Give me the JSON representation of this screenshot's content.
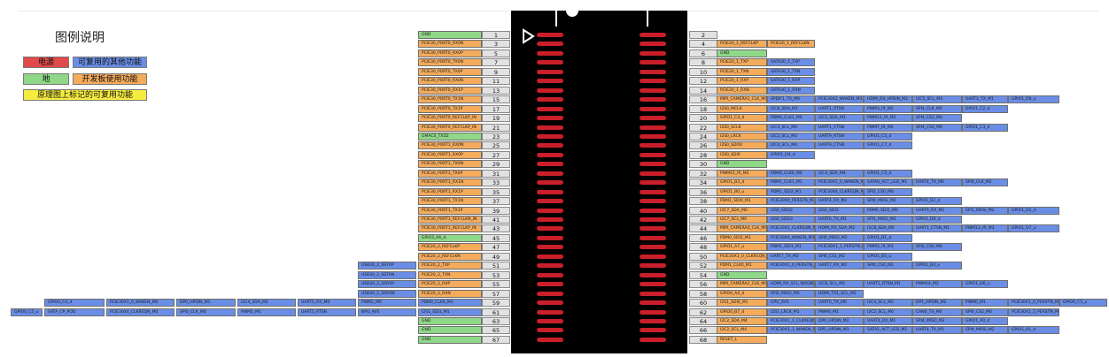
{
  "legend": {
    "title": "图例说明",
    "items": [
      {
        "label": "电源",
        "color": "#e04a4a"
      },
      {
        "label": "可复用的其他功能",
        "color": "#6a8ee6"
      },
      {
        "label": "地",
        "color": "#8fd888"
      },
      {
        "label": "开发板使用功能",
        "color": "#f4ab5c"
      },
      {
        "label": "原理图上标记的可复用功能",
        "color": "#f6ec40"
      }
    ]
  },
  "colors": {
    "power": "#e04a4a",
    "alt": "#6a8ee6",
    "ground": "#8fd888",
    "board": "#f4ab5c",
    "marked": "#f6ec40",
    "pin_number": "#e2e2e2",
    "connector": "#000000",
    "pad": "#c91f2a"
  },
  "left_pins": [
    {
      "num": "1",
      "cells": [
        {
          "t": "GND",
          "c": "g"
        }
      ]
    },
    {
      "num": "3",
      "cells": [
        {
          "t": "PCIE30_PORT0_RX0N",
          "c": "o"
        }
      ]
    },
    {
      "num": "5",
      "cells": [
        {
          "t": "PCIE30_PORT0_RX0P",
          "c": "o"
        }
      ]
    },
    {
      "num": "7",
      "cells": [
        {
          "t": "PCIE30_PORT0_TX0N",
          "c": "o"
        }
      ]
    },
    {
      "num": "9",
      "cells": [
        {
          "t": "PCIE30_PORT0_TX0P",
          "c": "o"
        }
      ]
    },
    {
      "num": "11",
      "cells": [
        {
          "t": "PCIE30_PORT0_RX0N",
          "c": "o"
        }
      ]
    },
    {
      "num": "13",
      "cells": [
        {
          "t": "PCIE30_PORT0_RX1P",
          "c": "o"
        }
      ]
    },
    {
      "num": "15",
      "cells": [
        {
          "t": "PCIE30_PORT0_TX1N",
          "c": "o"
        }
      ]
    },
    {
      "num": "17",
      "cells": [
        {
          "t": "PCIE30_PORT0_TX1P",
          "c": "o"
        }
      ]
    },
    {
      "num": "19",
      "cells": [
        {
          "t": "PCIE30_PORT0_REFCLKP_IN",
          "c": "o"
        }
      ]
    },
    {
      "num": "21",
      "cells": [
        {
          "t": "PCIE30_PORT0_REFCLKP_IN",
          "c": "o"
        }
      ]
    },
    {
      "num": "23",
      "cells": [
        {
          "t": "GMAC0_TXD2",
          "c": "g"
        }
      ]
    },
    {
      "num": "25",
      "cells": [
        {
          "t": "PCIE30_PORT1_RX0N",
          "c": "o"
        }
      ]
    },
    {
      "num": "27",
      "cells": [
        {
          "t": "PCIE30_PORT1_RX0P",
          "c": "o"
        }
      ]
    },
    {
      "num": "29",
      "cells": [
        {
          "t": "PCIE30_PORT1_TX0N",
          "c": "o"
        }
      ]
    },
    {
      "num": "31",
      "cells": [
        {
          "t": "PCIE30_PORT1_TX0P",
          "c": "o"
        }
      ]
    },
    {
      "num": "33",
      "cells": [
        {
          "t": "PCIE30_PORT1_RX1N",
          "c": "o"
        }
      ]
    },
    {
      "num": "35",
      "cells": [
        {
          "t": "PCIE30_PORT1_RX1P",
          "c": "o"
        }
      ]
    },
    {
      "num": "37",
      "cells": [
        {
          "t": "PCIE30_PORT1_TX1N",
          "c": "o"
        }
      ]
    },
    {
      "num": "39",
      "cells": [
        {
          "t": "PCIE30_PORT1_TX1P",
          "c": "o"
        }
      ]
    },
    {
      "num": "41",
      "cells": [
        {
          "t": "PCIE30_PORT1_REFCLKN_IN",
          "c": "o"
        }
      ]
    },
    {
      "num": "43",
      "cells": [
        {
          "t": "PCIE30_PORT1_REFCLKP_IN",
          "c": "o"
        }
      ]
    },
    {
      "num": "45",
      "cells": [
        {
          "t": "GPIO3_A6_d",
          "c": "g"
        }
      ]
    },
    {
      "num": "47",
      "cells": [
        {
          "t": "PCIE20_2_REFCLKP",
          "c": "o"
        }
      ]
    },
    {
      "num": "49",
      "cells": [
        {
          "t": "PCIE20_2_REFCLKN",
          "c": "o"
        }
      ]
    },
    {
      "num": "51",
      "cells": [
        {
          "t": "PCIE20_2_TXP",
          "c": "o"
        },
        {
          "t": "USB30_2_SSTXP",
          "c": "b"
        }
      ]
    },
    {
      "num": "53",
      "cells": [
        {
          "t": "PCIE20_2_TXN",
          "c": "o"
        },
        {
          "t": "USB30_2_SSTXN",
          "c": "b"
        }
      ]
    },
    {
      "num": "55",
      "cells": [
        {
          "t": "PCIE20_2_RXP",
          "c": "o"
        },
        {
          "t": "USB30_2_SSRXP",
          "c": "b"
        }
      ]
    },
    {
      "num": "57",
      "cells": [
        {
          "t": "PCIE20_2_RXN",
          "c": "o"
        },
        {
          "t": "USB30_2_SSRXN",
          "c": "b"
        }
      ]
    },
    {
      "num": "59",
      "cells": [
        {
          "t": "PDM0_CLK0_M1",
          "c": "b"
        },
        {
          "t": "PWM2_M0",
          "c": "b"
        },
        {
          "t": "UART5_RX_M0",
          "c": "b"
        },
        {
          "t": "I2C4_SDA_M2",
          "c": "b"
        },
        {
          "t": "DP0_HPDIN_M1",
          "c": "b"
        },
        {
          "t": "PCIE30X1_0_WAKEN_M0",
          "c": "b"
        },
        {
          "t": "GPIO0_C4_d",
          "c": "b"
        }
      ]
    },
    {
      "num": "61",
      "cells": [
        {
          "t": "I2S1_SDI1_M1",
          "c": "b"
        },
        {
          "t": "NPU_AVS",
          "c": "b"
        },
        {
          "t": "UART5_RTSN",
          "c": "b"
        },
        {
          "t": "PWM5_M1",
          "c": "b"
        },
        {
          "t": "SPI0_CLK_M0",
          "c": "b"
        },
        {
          "t": "PCIE30X4_CLKREQN_M0",
          "c": "b"
        },
        {
          "t": "SATA_CP_POD",
          "c": "b"
        },
        {
          "t": "GPIO0_C5_u",
          "c": "b"
        }
      ]
    },
    {
      "num": "63",
      "cells": [
        {
          "t": "GND",
          "c": "g"
        }
      ]
    },
    {
      "num": "65",
      "cells": [
        {
          "t": "GND",
          "c": "g"
        }
      ]
    },
    {
      "num": "67",
      "cells": [
        {
          "t": "GND",
          "c": "g"
        }
      ]
    }
  ],
  "right_pins": [
    {
      "num": "2",
      "cells": []
    },
    {
      "num": "4",
      "cells": [
        {
          "t": "PCIE20_1_REFCLKP",
          "c": "o"
        },
        {
          "t": "PCIE20_1_REFCLKN",
          "c": "o"
        }
      ]
    },
    {
      "num": "6",
      "cells": [
        {
          "t": "GND",
          "c": "g"
        }
      ]
    },
    {
      "num": "8",
      "cells": [
        {
          "t": "PCIE20_1_TXP",
          "c": "o"
        },
        {
          "t": "SATA30_1_TXP",
          "c": "b"
        }
      ]
    },
    {
      "num": "10",
      "cells": [
        {
          "t": "PCIE20_1_TXN",
          "c": "o"
        },
        {
          "t": "SATA30_1_TXN",
          "c": "b"
        }
      ]
    },
    {
      "num": "12",
      "cells": [
        {
          "t": "PCIE20_1_RXP",
          "c": "o"
        },
        {
          "t": "SATA30_1_RXP",
          "c": "b"
        }
      ]
    },
    {
      "num": "14",
      "cells": [
        {
          "t": "PCIE20_1_RXN",
          "c": "o"
        },
        {
          "t": "SATA30_1_RXN",
          "c": "b"
        }
      ]
    },
    {
      "num": "16",
      "cells": [
        {
          "t": "MIPI_CAMERA1_CLK_M0",
          "c": "o"
        },
        {
          "t": "SPDIF1_TX_M0",
          "c": "b"
        },
        {
          "t": "PCIE30X2_WAKEN_M3",
          "c": "b"
        },
        {
          "t": "HDMI_RX_HPDIN_M2",
          "c": "b"
        },
        {
          "t": "I2C5_SCL_M3",
          "c": "b"
        },
        {
          "t": "UART3_TX_M1",
          "c": "b"
        },
        {
          "t": "GPIO1_D6_u",
          "c": "b"
        }
      ]
    },
    {
      "num": "18",
      "cells": [
        {
          "t": "I2S0_MCLK",
          "c": "o"
        },
        {
          "t": "I2C8_SDA_M1",
          "c": "b"
        },
        {
          "t": "UART1_RTSN",
          "c": "b"
        },
        {
          "t": "PWM3_IR_M2",
          "c": "b"
        },
        {
          "t": "SPI4_CLK_M0",
          "c": "b"
        },
        {
          "t": "GPIO1_C2_d",
          "c": "b"
        }
      ]
    },
    {
      "num": "20",
      "cells": [
        {
          "t": "GPIO1_C4_d",
          "c": "o"
        },
        {
          "t": "PDM0_CLK1_M0",
          "c": "b"
        },
        {
          "t": "I2C2_SDA_M1",
          "c": "b"
        },
        {
          "t": "PWM11_IR_M2",
          "c": "b"
        },
        {
          "t": "SPI4_CS2_M0",
          "c": "b"
        }
      ]
    },
    {
      "num": "22",
      "cells": [
        {
          "t": "I2S0_SCLK",
          "c": "o"
        },
        {
          "t": "I2C3_SCL_M0",
          "c": "b"
        },
        {
          "t": "UART1_CTSN",
          "c": "b"
        },
        {
          "t": "PWM7_IR_M2",
          "c": "b"
        },
        {
          "t": "SPI4_CS0_M0",
          "c": "b"
        },
        {
          "t": "GPIO1_C3_d",
          "c": "b"
        }
      ]
    },
    {
      "num": "24",
      "cells": [
        {
          "t": "I2S0_LRCK",
          "c": "o"
        },
        {
          "t": "I2C2_SCL_M3",
          "c": "b"
        },
        {
          "t": "UART9_RTSN",
          "c": "b"
        },
        {
          "t": "GPIO1_C5_d",
          "c": "b"
        }
      ]
    },
    {
      "num": "26",
      "cells": [
        {
          "t": "I2S0_SDO0",
          "c": "o"
        },
        {
          "t": "I2C4_SCL_M4",
          "c": "b"
        },
        {
          "t": "UART9_CTSN",
          "c": "b"
        },
        {
          "t": "GPIO1_C7_d",
          "c": "b"
        }
      ]
    },
    {
      "num": "28",
      "cells": [
        {
          "t": "I2S0_SDI0",
          "c": "o"
        },
        {
          "t": "GPIO1_D4_d",
          "c": "b"
        }
      ]
    },
    {
      "num": "30",
      "cells": [
        {
          "t": "GND",
          "c": "g"
        }
      ]
    },
    {
      "num": "32",
      "cells": [
        {
          "t": "PWM15_IR_M2",
          "c": "o"
        },
        {
          "t": "PDM0_CLK0_M0",
          "c": "b"
        },
        {
          "t": "I2C4_SDA_M4",
          "c": "b"
        },
        {
          "t": "GPIO1_C0_d",
          "c": "b"
        }
      ]
    },
    {
      "num": "34",
      "cells": [
        {
          "t": "GPIO1_B3_d",
          "c": "o"
        },
        {
          "t": "PDM1_CLK1_M1",
          "c": "b"
        },
        {
          "t": "PCIE30X1_0_WAKEN_M2",
          "c": "b"
        },
        {
          "t": "SATA0_ACT_LED_M1",
          "c": "b"
        },
        {
          "t": "UART4_TX_M0",
          "c": "b"
        },
        {
          "t": "SPI0_CLK_M2",
          "c": "b"
        }
      ]
    },
    {
      "num": "36",
      "cells": [
        {
          "t": "GPIO1_B0_u",
          "c": "o"
        },
        {
          "t": "PDM1_SDI2_M1",
          "c": "b"
        },
        {
          "t": "PCIE30X4_CLKREQN_M2",
          "c": "b"
        },
        {
          "t": "SPI2_CS0_M0",
          "c": "b"
        }
      ]
    },
    {
      "num": "38",
      "cells": [
        {
          "t": "PDM1_SDI0_M1",
          "c": "o"
        },
        {
          "t": "PCIE30X4_PERSTN_M3",
          "c": "b"
        },
        {
          "t": "UART4_RX_M2",
          "c": "b"
        },
        {
          "t": "SPI0_MOSI_M2",
          "c": "b"
        },
        {
          "t": "GPIO1_B2_d",
          "c": "b"
        }
      ]
    },
    {
      "num": "40",
      "cells": [
        {
          "t": "I2C7_SDA_M0",
          "c": "o"
        },
        {
          "t": "I2S0_SDO2",
          "c": "b"
        },
        {
          "t": "I2S0_SDI3",
          "c": "b"
        },
        {
          "t": "PDM0_SDI1_M0",
          "c": "b"
        },
        {
          "t": "UART9_RX_M2",
          "c": "b"
        },
        {
          "t": "SPI1_MOSI_M2",
          "c": "b"
        },
        {
          "t": "GPIO1_D1_d",
          "c": "b"
        }
      ]
    },
    {
      "num": "42",
      "cells": [
        {
          "t": "I2C7_SCL_M0",
          "c": "o"
        },
        {
          "t": "I2S0_SDO3",
          "c": "b"
        },
        {
          "t": "UART6_TX_M1",
          "c": "b"
        },
        {
          "t": "SPI1_MISO_M2",
          "c": "b"
        },
        {
          "t": "GPIO1_D0_d",
          "c": "b"
        }
      ]
    },
    {
      "num": "44",
      "cells": [
        {
          "t": "MIPI_CAMERA4_CLK_M0",
          "c": "o"
        },
        {
          "t": "PCIE30X1_CLKREQN_M0",
          "c": "b"
        },
        {
          "t": "HDMI_RX_SDA_M2",
          "c": "b"
        },
        {
          "t": "I2C8_SDA_M2",
          "c": "b"
        },
        {
          "t": "UART1_CTSN_M1",
          "c": "b"
        },
        {
          "t": "PWM13_IR_M3",
          "c": "b"
        },
        {
          "t": "GPIO1_D7_u",
          "c": "b"
        }
      ]
    },
    {
      "num": "46",
      "cells": [
        {
          "t": "PDM0_SDI2_M1",
          "c": "o"
        },
        {
          "t": "PCIE30X4_WAKEN_M3",
          "c": "b"
        },
        {
          "t": "SPI0_MISO_M2",
          "c": "b"
        },
        {
          "t": "GPIO1_B1_d",
          "c": "b"
        }
      ]
    },
    {
      "num": "48",
      "cells": [
        {
          "t": "GPIO1_A7_u",
          "c": "o"
        },
        {
          "t": "PDM1_SDI1_M1",
          "c": "b"
        },
        {
          "t": "PCIE30X1_1_PERSTN_M1",
          "c": "b"
        },
        {
          "t": "PWM3_IR_M3",
          "c": "b"
        },
        {
          "t": "SPI2_CS0_M0",
          "c": "b"
        }
      ]
    },
    {
      "num": "50",
      "cells": [
        {
          "t": "PCIE30X1_0_CLKREQN_M2",
          "c": "o"
        },
        {
          "t": "UART7_TX_M2",
          "c": "b"
        },
        {
          "t": "SPI0_CS1_M2",
          "c": "b"
        },
        {
          "t": "GPIO1_B5_u",
          "c": "b"
        }
      ]
    },
    {
      "num": "52",
      "cells": [
        {
          "t": "PDM1_CLK0_M1",
          "c": "o"
        },
        {
          "t": "PCIE30X1_0_PERSTN_M2",
          "c": "b"
        },
        {
          "t": "UART7_RX_M2",
          "c": "b"
        },
        {
          "t": "SPI0_CS0_M2",
          "c": "b"
        },
        {
          "t": "GPIO1_B4_u",
          "c": "b"
        }
      ]
    },
    {
      "num": "54",
      "cells": [
        {
          "t": "GND",
          "c": "g"
        }
      ]
    },
    {
      "num": "56",
      "cells": [
        {
          "t": "MIPI_CAMERA2_CLK_M0",
          "c": "o"
        },
        {
          "t": "HDMI_RX_SCL_NOGND",
          "c": "b"
        },
        {
          "t": "I2C8_SCL_M2",
          "c": "b"
        },
        {
          "t": "UART1_RTSN_M1",
          "c": "b"
        },
        {
          "t": "PWM14_M2",
          "c": "b"
        },
        {
          "t": "GPIO1_D6_u",
          "c": "b"
        }
      ]
    },
    {
      "num": "58",
      "cells": [
        {
          "t": "GPIO0_A4_d",
          "c": "o"
        },
        {
          "t": "SPI2_MISO_M0",
          "c": "b"
        },
        {
          "t": "HDMI_TX1_SCL_M2",
          "c": "b"
        }
      ]
    },
    {
      "num": "60",
      "cells": [
        {
          "t": "I2S1_SDI0_M1",
          "c": "o"
        },
        {
          "t": "GPU_AVS",
          "c": "b"
        },
        {
          "t": "UART0_TX_M0",
          "c": "b"
        },
        {
          "t": "I2C4_SCL_M2",
          "c": "b"
        },
        {
          "t": "DP1_HPDIN_M2",
          "c": "b"
        },
        {
          "t": "PWM0_M1",
          "c": "b"
        },
        {
          "t": "PCIE30X1_0_PERSTN_M0",
          "c": "b"
        },
        {
          "t": "GPIO0_C5_u",
          "c": "b"
        }
      ]
    },
    {
      "num": "62",
      "cells": [
        {
          "t": "GPIO0_B7_d",
          "c": "o"
        },
        {
          "t": "I2S1_LRCK_M1",
          "c": "b"
        },
        {
          "t": "PWM0_M1",
          "c": "b"
        },
        {
          "t": "I2C2_SCL_M0",
          "c": "b"
        },
        {
          "t": "CAN0_TX_M0",
          "c": "b"
        },
        {
          "t": "SPI0_CS2_M0",
          "c": "b"
        },
        {
          "t": "PCIE30X1_2_PERSTN_M0",
          "c": "b"
        }
      ]
    },
    {
      "num": "64",
      "cells": [
        {
          "t": "I2C2_SDA_M4",
          "c": "o"
        },
        {
          "t": "PCIE30X1_1_CLKREQN_M0",
          "c": "b"
        },
        {
          "t": "DP0_HPDIN_M2",
          "c": "b"
        },
        {
          "t": "UART4_RX_M1",
          "c": "b"
        },
        {
          "t": "SPI4_MISO_M2",
          "c": "b"
        },
        {
          "t": "GPIO1_A0_d",
          "c": "b"
        }
      ]
    },
    {
      "num": "66",
      "cells": [
        {
          "t": "I2C2_SCL_M4",
          "c": "o"
        },
        {
          "t": "PCIE30X1_1_WAKEN_M0",
          "c": "b"
        },
        {
          "t": "DP1_HPDIN_M1",
          "c": "b"
        },
        {
          "t": "SATA1_ACT_LED_M1",
          "c": "b"
        },
        {
          "t": "UART4_TX_M1",
          "c": "b"
        },
        {
          "t": "SPI4_MOSI_M2",
          "c": "b"
        },
        {
          "t": "GPIO1_A1_d",
          "c": "b"
        }
      ]
    },
    {
      "num": "68",
      "cells": [
        {
          "t": "RESET_L",
          "c": "o"
        }
      ]
    }
  ]
}
